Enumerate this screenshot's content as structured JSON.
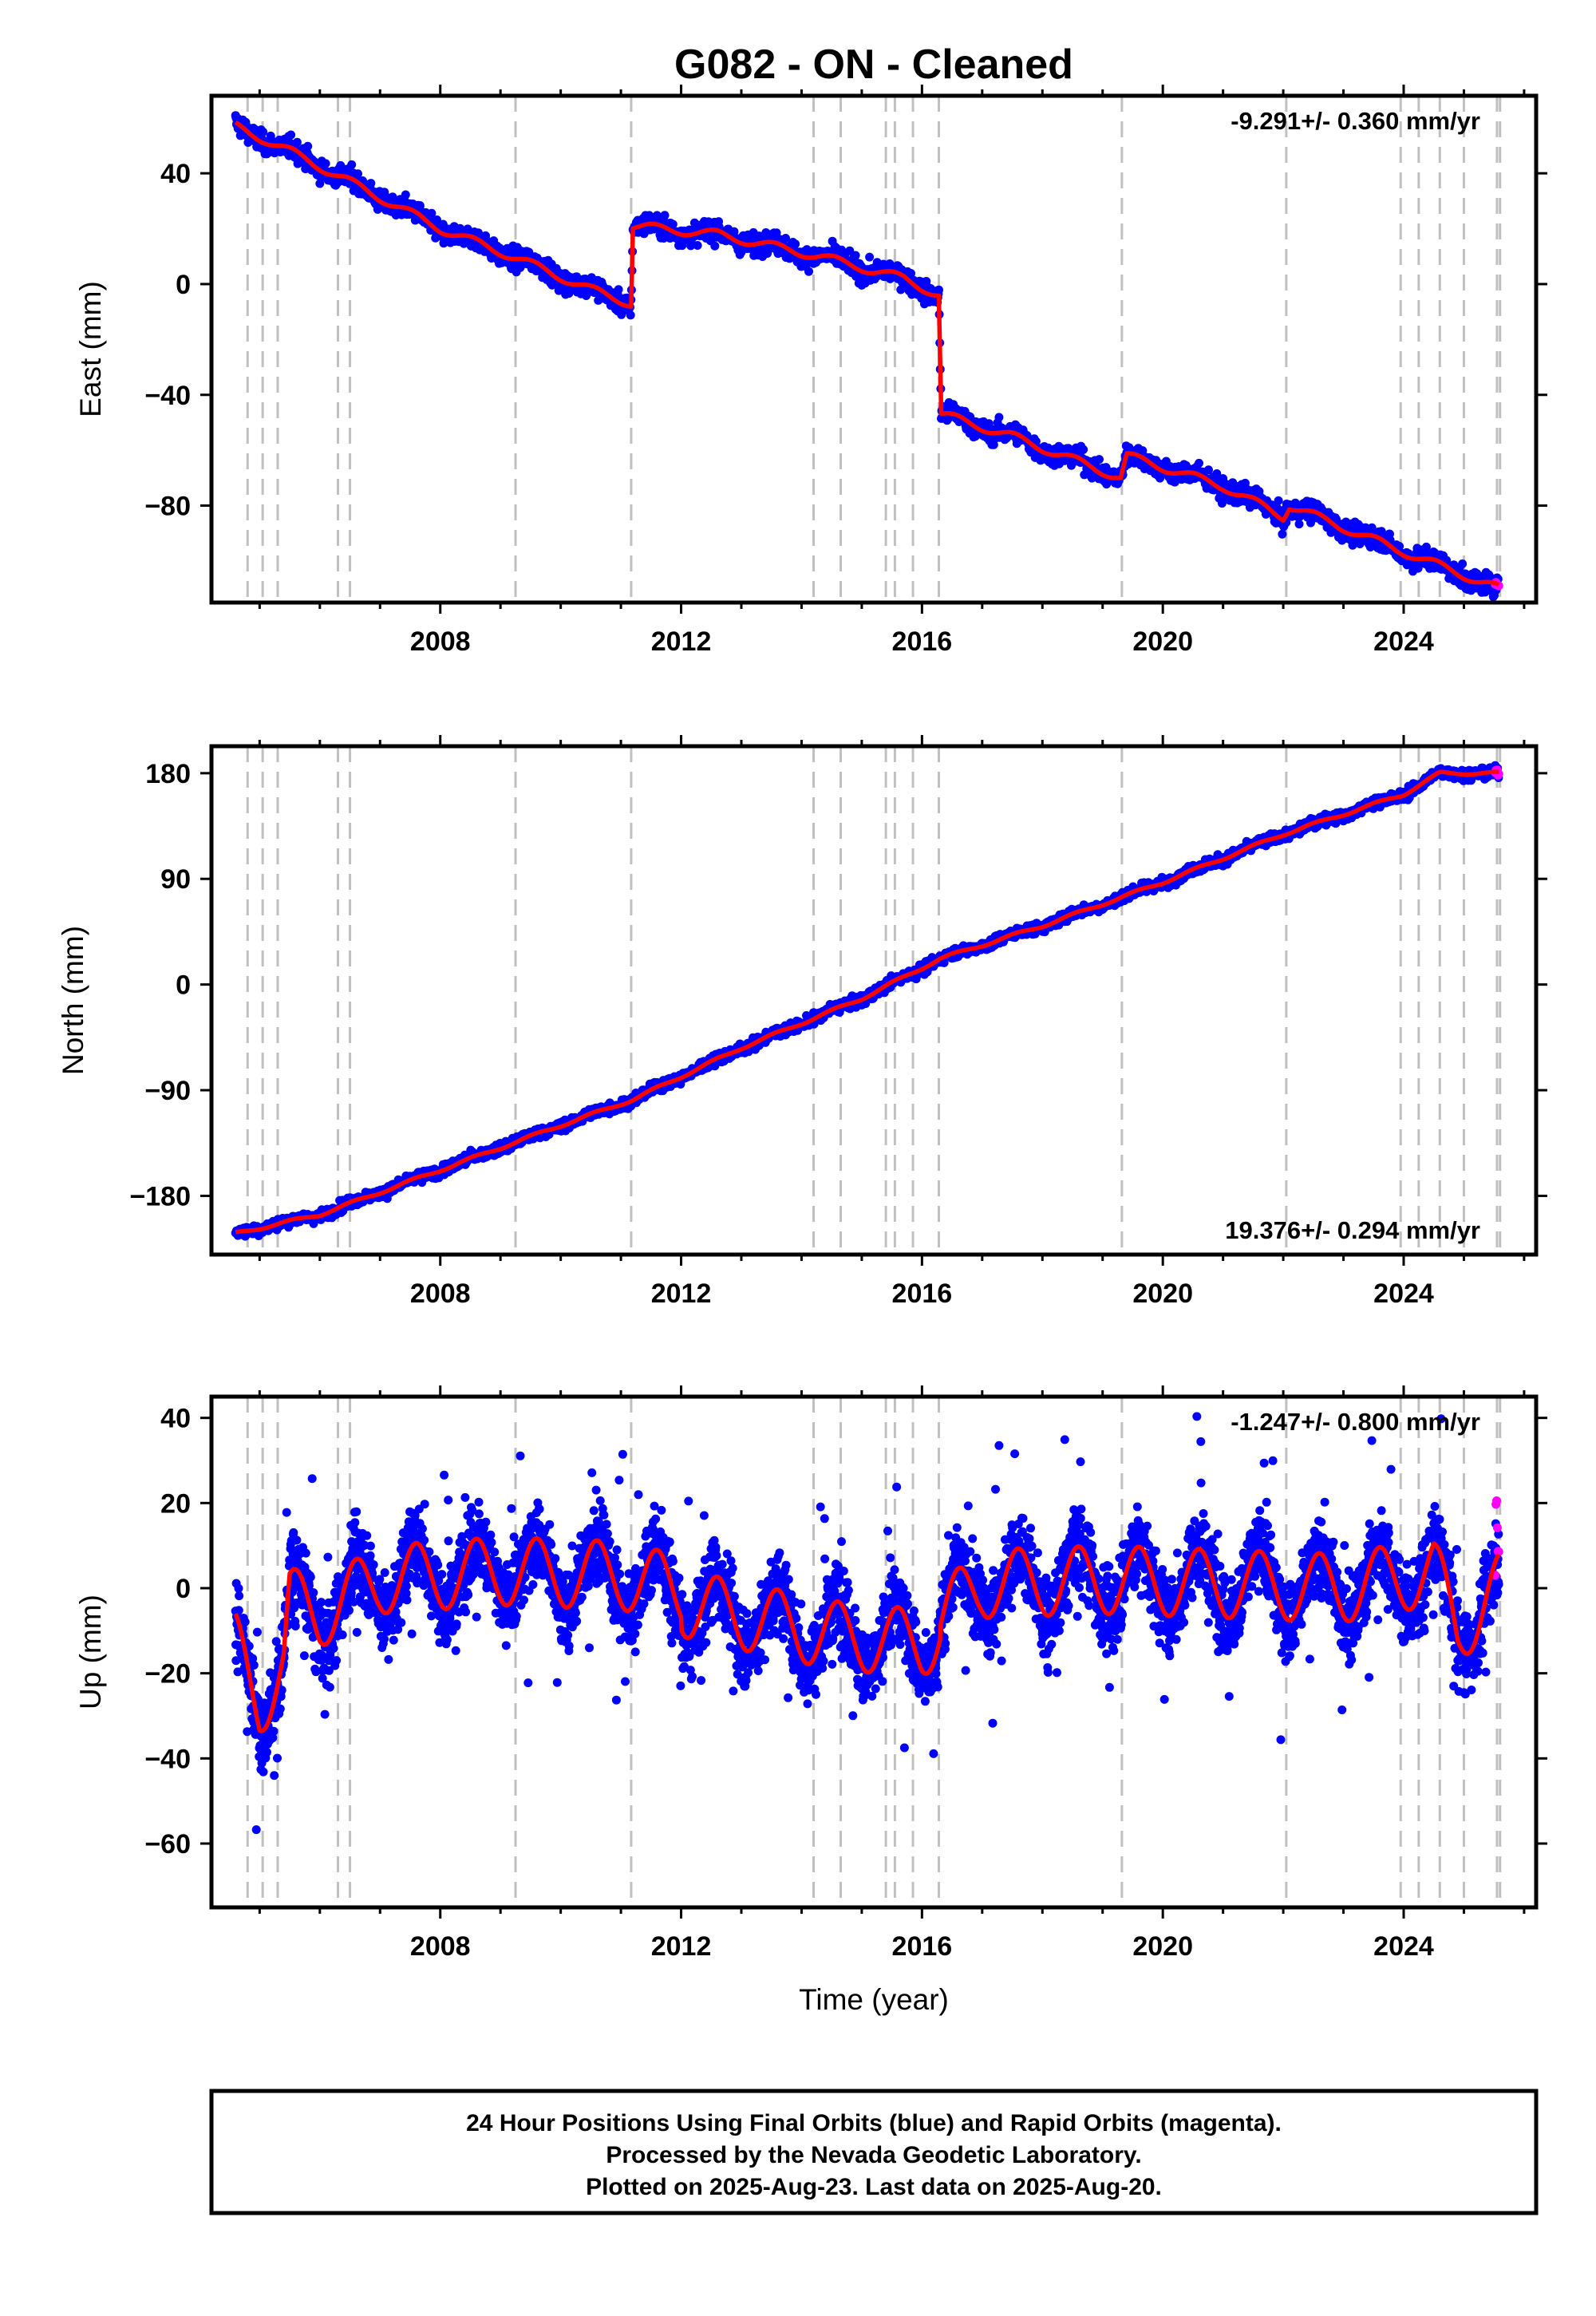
{
  "title": "G082  - ON - Cleaned",
  "xlabel": "Time (year)",
  "footer": {
    "line1": "24 Hour Positions Using Final Orbits (blue) and Rapid Orbits (magenta).",
    "line2": "Processed by the Nevada Geodetic Laboratory.",
    "line3": "Plotted on 2025-Aug-23. Last data on 2025-Aug-20."
  },
  "colors": {
    "final_orbits": "#0000ff",
    "rapid_orbits": "#ff00ff",
    "model": "#ff0000",
    "breaks": "#c0c0c0"
  },
  "chart_data": [
    {
      "type": "scatter",
      "panel": "east",
      "ylabel": "East (mm)",
      "rate_label": "-9.291+/- 0.360 mm/yr",
      "rate_position": "top-right",
      "xlim": [
        2004.2,
        2026.2
      ],
      "ylim": [
        -115,
        68
      ],
      "xticks": [
        2008,
        2012,
        2016,
        2020,
        2024
      ],
      "yticks": [
        40,
        0,
        -40,
        -80
      ],
      "grid": false,
      "steps": [
        [
          2011.18,
          28
        ],
        [
          2016.3,
          -41
        ],
        [
          2019.35,
          9
        ],
        [
          2022.05,
          4
        ]
      ],
      "model_series": [
        {
          "x": 2004.6,
          "y": 57
        },
        {
          "x": 2005.5,
          "y": 48
        },
        {
          "x": 2006.4,
          "y": 38
        },
        {
          "x": 2008.0,
          "y": 20
        },
        {
          "x": 2009.2,
          "y": 10
        },
        {
          "x": 2010.5,
          "y": -2
        },
        {
          "x": 2011.17,
          "y": -7
        },
        {
          "x": 2011.2,
          "y": 21
        },
        {
          "x": 2012.6,
          "y": 18
        },
        {
          "x": 2014.3,
          "y": 10
        },
        {
          "x": 2015.7,
          "y": 2
        },
        {
          "x": 2016.28,
          "y": -4
        },
        {
          "x": 2016.32,
          "y": -47
        },
        {
          "x": 2017.5,
          "y": -55
        },
        {
          "x": 2019.3,
          "y": -70
        },
        {
          "x": 2019.4,
          "y": -62
        },
        {
          "x": 2021.0,
          "y": -73
        },
        {
          "x": 2022.0,
          "y": -84
        },
        {
          "x": 2022.1,
          "y": -80
        },
        {
          "x": 2023.8,
          "y": -95
        },
        {
          "x": 2025.58,
          "y": -110
        }
      ]
    },
    {
      "type": "scatter",
      "panel": "north",
      "ylabel": "North (mm)",
      "rate_label": "19.376+/- 0.294 mm/yr",
      "rate_position": "bottom-right",
      "xlim": [
        2004.2,
        2026.2
      ],
      "ylim": [
        -230,
        203
      ],
      "xticks": [
        2008,
        2012,
        2016,
        2020,
        2024
      ],
      "yticks": [
        180,
        90,
        0,
        -90,
        -180
      ],
      "grid": false,
      "model_series": [
        {
          "x": 2004.6,
          "y": -212
        },
        {
          "x": 2006.0,
          "y": -196
        },
        {
          "x": 2008.0,
          "y": -158
        },
        {
          "x": 2010.0,
          "y": -120
        },
        {
          "x": 2011.2,
          "y": -98
        },
        {
          "x": 2013.0,
          "y": -54
        },
        {
          "x": 2015.0,
          "y": -12
        },
        {
          "x": 2016.3,
          "y": 22
        },
        {
          "x": 2018.0,
          "y": 50
        },
        {
          "x": 2020.0,
          "y": 87
        },
        {
          "x": 2022.0,
          "y": 128
        },
        {
          "x": 2024.0,
          "y": 162
        },
        {
          "x": 2024.6,
          "y": 180
        },
        {
          "x": 2025.58,
          "y": 180
        }
      ]
    },
    {
      "type": "scatter",
      "panel": "up",
      "ylabel": "Up (mm)",
      "rate_label": "-1.247+/- 0.800 mm/yr",
      "rate_position": "top-right",
      "xlim": [
        2004.2,
        2026.2
      ],
      "ylim": [
        -75,
        45
      ],
      "xticks": [
        2008,
        2012,
        2016,
        2020,
        2024
      ],
      "yticks": [
        40,
        20,
        0,
        -20,
        -40,
        -60
      ],
      "grid": false,
      "model_series": [
        {
          "x": 2004.6,
          "y": -14
        },
        {
          "x": 2005.0,
          "y": -27
        },
        {
          "x": 2005.4,
          "y": -18
        },
        {
          "x": 2005.5,
          "y": -3
        },
        {
          "x": 2006.0,
          "y": -6
        },
        {
          "x": 2007.0,
          "y": 2
        },
        {
          "x": 2009.0,
          "y": 4
        },
        {
          "x": 2011.0,
          "y": 3
        },
        {
          "x": 2012.5,
          "y": -2
        },
        {
          "x": 2014.5,
          "y": -8
        },
        {
          "x": 2016.0,
          "y": -10
        },
        {
          "x": 2017.0,
          "y": 1
        },
        {
          "x": 2019.0,
          "y": 2
        },
        {
          "x": 2021.0,
          "y": 1
        },
        {
          "x": 2023.0,
          "y": 0
        },
        {
          "x": 2024.5,
          "y": 4
        },
        {
          "x": 2024.9,
          "y": -10
        },
        {
          "x": 2025.58,
          "y": 0
        }
      ]
    }
  ],
  "break_years": [
    2004.8,
    2005.05,
    2005.3,
    2006.3,
    2006.5,
    2009.25,
    2011.17,
    2014.2,
    2014.65,
    2015.4,
    2015.55,
    2015.85,
    2016.28,
    2019.32,
    2022.05,
    2023.95,
    2024.25,
    2024.6,
    2025.0,
    2025.55,
    2025.6
  ]
}
